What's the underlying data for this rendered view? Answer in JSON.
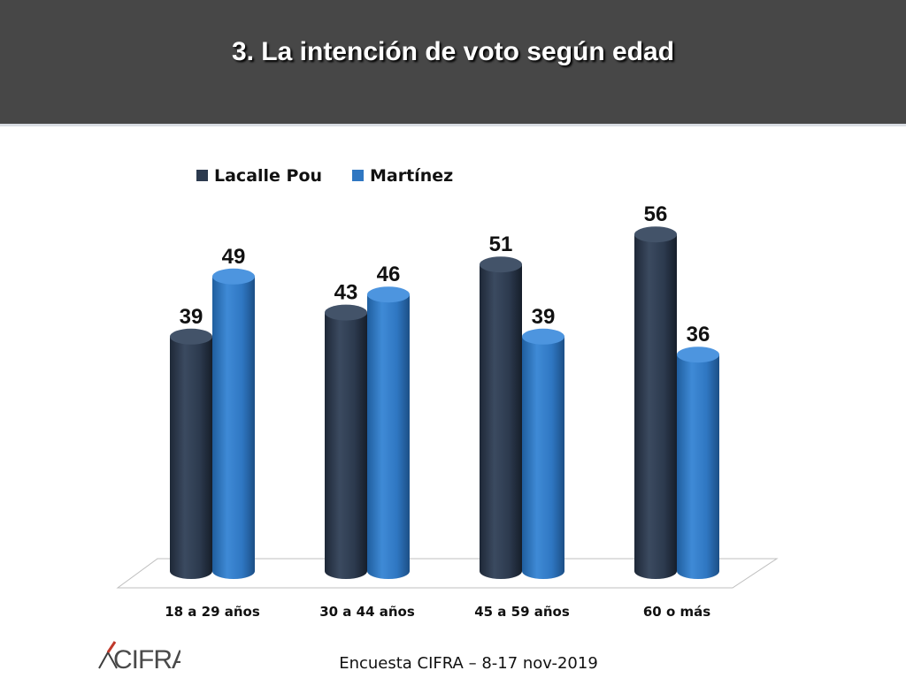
{
  "header": {
    "title": "3. La intención de voto según edad"
  },
  "footer": {
    "source": "Encuesta CIFRA – 8-17 nov-2019",
    "logo_text": "CIFRA"
  },
  "colors": {
    "header_bg": "#474747",
    "series1": "#2c3a4e",
    "series2": "#2f77c2"
  },
  "chart_data": {
    "type": "bar",
    "title": "",
    "xlabel": "",
    "ylabel": "",
    "categories": [
      "18 a 29 años",
      "30 a 44 años",
      "45 a 59 años",
      "60 o más"
    ],
    "series": [
      {
        "name": "Lacalle Pou",
        "values": [
          39,
          43,
          51,
          56
        ],
        "color": "#2c3a4e"
      },
      {
        "name": "Martínez",
        "values": [
          49,
          46,
          39,
          36
        ],
        "color": "#2f77c2"
      }
    ],
    "ylim": [
      0,
      60
    ],
    "legend": "top-left",
    "grid": false,
    "data_labels": true
  }
}
